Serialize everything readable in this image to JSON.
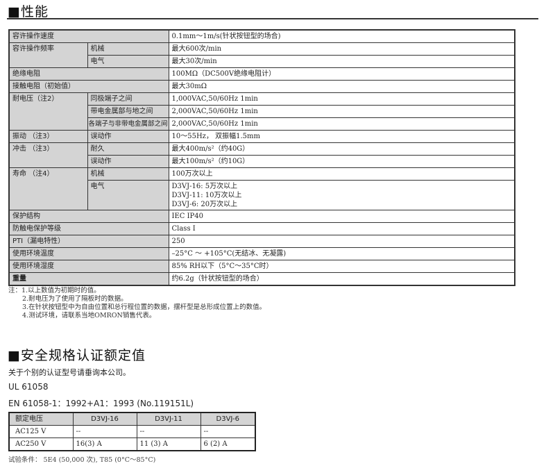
{
  "performance": {
    "title": "■性能",
    "rows": [
      {
        "label": "容许操作速度",
        "sub": "",
        "value": "0.1mm～1m/s(针状按钮型的场合)"
      },
      {
        "label": "容许操作频率",
        "sub": "机械",
        "value": "最大600次/min"
      },
      {
        "label": "",
        "sub": "电气",
        "value": "最大30次/min"
      },
      {
        "label": "绝缘电阻",
        "sub": "",
        "value": "100MΩ（DC500V绝缘电阻计）"
      },
      {
        "label": "接触电阻（初始值）",
        "sub": "",
        "value": "最大30mΩ"
      },
      {
        "label": "耐电压（注2）",
        "sub": "同极端子之间",
        "value": "1,000VAC,50/60Hz 1min"
      },
      {
        "label": "",
        "sub": "带电金属部与地之间",
        "value": "2,000VAC,50/60Hz 1min"
      },
      {
        "label": "",
        "sub": "各端子与非带电金属部之间",
        "value": "2,000VAC,50/60Hz 1min"
      },
      {
        "label": "振动 （注3）",
        "sub": "误动作",
        "value": "10～55Hz， 双振幅1.5mm"
      },
      {
        "label": "冲击 （注3）",
        "sub": "耐久",
        "value": "最大400m/s²（约40G）"
      },
      {
        "label": "",
        "sub": "误动作",
        "value": "最大100m/s²（约10G）"
      },
      {
        "label": "寿命 （注4）",
        "sub": "机械",
        "value": "100万次以上"
      },
      {
        "label": "",
        "sub": "电气",
        "value": "D3VJ-16:  5万次以上",
        "value2": "D3VJ-11: 10万次以上",
        "value3": "D3VJ-6:  20万次以上"
      },
      {
        "label": "保护结构",
        "sub": "",
        "value": "IEC IP40"
      },
      {
        "label": "防触电保护等级",
        "sub": "",
        "value": "Class I"
      },
      {
        "label": "PTI（漏电特性）",
        "sub": "",
        "value": "250"
      },
      {
        "label": "使用环境温度",
        "sub": "",
        "value": "–25°C ～ +105°C(无结冰、无凝露)"
      },
      {
        "label": "使用环境湿度",
        "sub": "",
        "value": "85% RH以下（5°C～35°C时）"
      },
      {
        "label": "重量",
        "sub": "",
        "value": "约6.2g（针状按钮型的场合）"
      }
    ],
    "notes": [
      "注：1.以上数值为初期时的值。",
      "2.耐电压为了使用了隔板时的数据。",
      "3.在针状按钮型中为自由位置和总行程位置的数据，摆杆型是总形成位置上的数值。",
      "4.测试环境，请联系当地OMRON销售代表。"
    ]
  },
  "safety": {
    "title": "■安全规格认证额定值",
    "intro": "关于个别的认证型号请垂询本公司。",
    "std1": "UL 61058",
    "std2": "EN 61058-1：1992+A1：1993 (No.119151L)",
    "headers": [
      "额定电压",
      "D3VJ-16",
      "D3VJ-11",
      "D3VJ-6"
    ],
    "rows": [
      [
        "AC125 V",
        "--",
        "--",
        "--"
      ],
      [
        "AC250 V",
        "16(3) A",
        "11 (3) A",
        "6 (2) A"
      ]
    ],
    "footer": "试验条件： 5E4 (50,000 次), T85 (0°C～85°C)"
  }
}
